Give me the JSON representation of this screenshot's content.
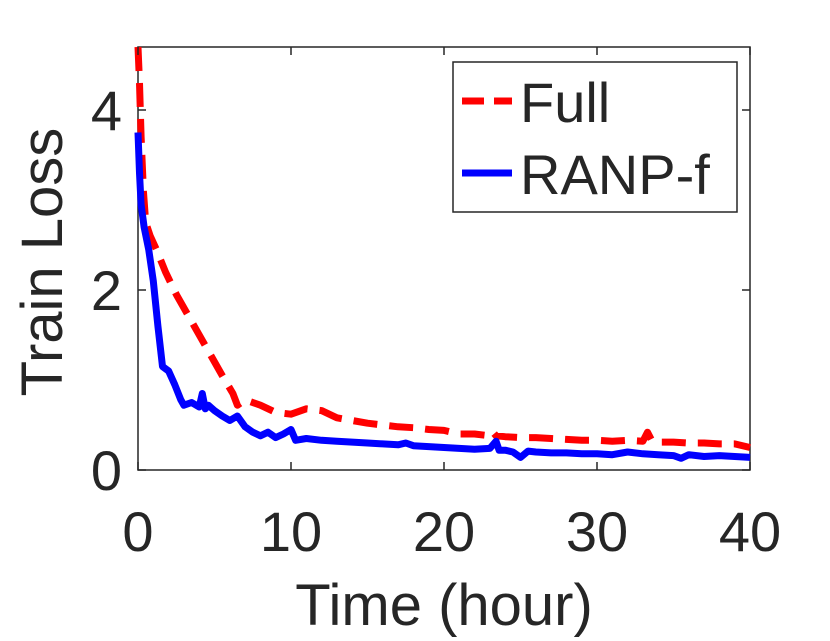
{
  "chart_data": {
    "type": "line",
    "title": "",
    "xlabel": "Time (hour)",
    "ylabel": "Train Loss",
    "xlim": [
      0,
      40
    ],
    "ylim": [
      0,
      4.7
    ],
    "xticks": [
      0,
      10,
      20,
      30,
      40
    ],
    "yticks": [
      0,
      2,
      4
    ],
    "grid": false,
    "legend_position": "top-right",
    "series": [
      {
        "name": "Full",
        "color": "#ff0000",
        "style": "dashed",
        "x": [
          0,
          0.1,
          0.2,
          0.35,
          0.5,
          0.8,
          1.2,
          1.8,
          2.5,
          3.5,
          4.5,
          5.5,
          6.2,
          6.5,
          7.0,
          8.0,
          9.0,
          10.0,
          11.0,
          12.0,
          13.0,
          14.0,
          15.0,
          16.0,
          17.0,
          18.0,
          19.0,
          20.0,
          21.0,
          22.0,
          23.0,
          23.2,
          23.4,
          24.0,
          25.0,
          26.0,
          27.0,
          28.0,
          29.0,
          30.0,
          31.0,
          32.0,
          33.0,
          33.3,
          33.6,
          34.0,
          35.0,
          36.0,
          37.0,
          38.0,
          39.0,
          40.0
        ],
        "y": [
          4.7,
          4.3,
          3.7,
          3.1,
          2.75,
          2.6,
          2.45,
          2.2,
          1.95,
          1.65,
          1.35,
          1.05,
          0.85,
          0.72,
          0.78,
          0.72,
          0.64,
          0.62,
          0.68,
          0.66,
          0.58,
          0.55,
          0.52,
          0.5,
          0.48,
          0.47,
          0.45,
          0.44,
          0.4,
          0.4,
          0.38,
          0.42,
          0.38,
          0.37,
          0.36,
          0.36,
          0.35,
          0.34,
          0.33,
          0.33,
          0.32,
          0.33,
          0.32,
          0.42,
          0.32,
          0.31,
          0.31,
          0.3,
          0.3,
          0.29,
          0.29,
          0.25
        ]
      },
      {
        "name": "RANP-f",
        "color": "#0000ff",
        "style": "solid",
        "x": [
          0,
          0.1,
          0.2,
          0.4,
          0.7,
          1.0,
          1.3,
          1.6,
          2.0,
          2.4,
          2.8,
          3.0,
          3.5,
          4.0,
          4.2,
          4.4,
          4.6,
          5.0,
          5.5,
          6.0,
          6.5,
          7.0,
          7.5,
          8.0,
          8.5,
          9.0,
          9.5,
          10.0,
          10.3,
          11.0,
          12.0,
          13.0,
          14.0,
          15.0,
          16.0,
          17.0,
          17.5,
          18.0,
          19.0,
          20.0,
          21.0,
          22.0,
          23.0,
          23.4,
          23.6,
          24.0,
          24.5,
          25.0,
          25.5,
          26.0,
          27.0,
          28.0,
          29.0,
          30.0,
          31.0,
          32.0,
          33.0,
          34.0,
          35.0,
          35.5,
          36.0,
          37.0,
          38.0,
          39.0,
          40.0
        ],
        "y": [
          3.75,
          3.3,
          2.95,
          2.7,
          2.45,
          2.1,
          1.6,
          1.15,
          1.1,
          0.95,
          0.78,
          0.72,
          0.75,
          0.7,
          0.85,
          0.68,
          0.72,
          0.66,
          0.6,
          0.55,
          0.6,
          0.48,
          0.42,
          0.38,
          0.42,
          0.36,
          0.4,
          0.45,
          0.33,
          0.35,
          0.33,
          0.32,
          0.31,
          0.3,
          0.29,
          0.28,
          0.3,
          0.27,
          0.26,
          0.25,
          0.24,
          0.23,
          0.24,
          0.32,
          0.22,
          0.22,
          0.2,
          0.14,
          0.21,
          0.2,
          0.19,
          0.19,
          0.18,
          0.18,
          0.17,
          0.2,
          0.18,
          0.17,
          0.16,
          0.13,
          0.17,
          0.15,
          0.16,
          0.15,
          0.14
        ]
      }
    ]
  }
}
